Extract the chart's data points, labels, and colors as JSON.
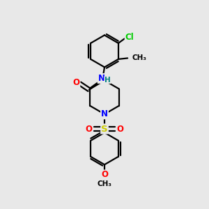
{
  "bg_color": "#e8e8e8",
  "bond_color": "#000000",
  "line_width": 1.6,
  "atom_colors": {
    "N": "#0000ff",
    "O": "#ff0000",
    "S": "#cccc00",
    "Cl": "#00cc00",
    "C": "#000000",
    "H": "#008080"
  },
  "font_size": 8.5,
  "fig_size": [
    3.0,
    3.0
  ],
  "dpi": 100
}
